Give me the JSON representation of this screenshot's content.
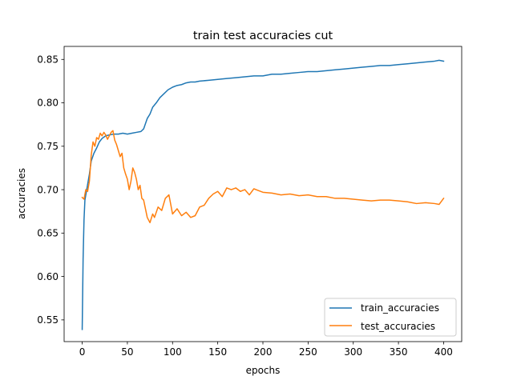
{
  "chart_data": {
    "type": "line",
    "title": "train test accuracies cut",
    "xlabel": "epochs",
    "ylabel": "accuracies",
    "xlim": [
      -20,
      420
    ],
    "ylim": [
      0.525,
      0.865
    ],
    "xticks": [
      0,
      50,
      100,
      150,
      200,
      250,
      300,
      350,
      400
    ],
    "yticks": [
      0.55,
      0.6,
      0.65,
      0.7,
      0.75,
      0.8,
      0.85
    ],
    "ytick_labels": [
      "0.55",
      "0.60",
      "0.65",
      "0.70",
      "0.75",
      "0.80",
      "0.85"
    ],
    "grid": false,
    "legend_position": "lower right",
    "series": [
      {
        "name": "train_accuracies",
        "color": "#1f77b4",
        "points": [
          [
            0,
            0.539
          ],
          [
            1,
            0.62
          ],
          [
            2,
            0.665
          ],
          [
            3,
            0.688
          ],
          [
            5,
            0.7
          ],
          [
            8,
            0.718
          ],
          [
            10,
            0.733
          ],
          [
            13,
            0.742
          ],
          [
            16,
            0.748
          ],
          [
            19,
            0.755
          ],
          [
            22,
            0.759
          ],
          [
            26,
            0.762
          ],
          [
            30,
            0.763
          ],
          [
            35,
            0.764
          ],
          [
            40,
            0.764
          ],
          [
            45,
            0.765
          ],
          [
            50,
            0.764
          ],
          [
            55,
            0.765
          ],
          [
            60,
            0.766
          ],
          [
            65,
            0.767
          ],
          [
            68,
            0.77
          ],
          [
            70,
            0.776
          ],
          [
            72,
            0.782
          ],
          [
            75,
            0.787
          ],
          [
            78,
            0.795
          ],
          [
            82,
            0.8
          ],
          [
            86,
            0.806
          ],
          [
            90,
            0.81
          ],
          [
            95,
            0.815
          ],
          [
            100,
            0.818
          ],
          [
            105,
            0.82
          ],
          [
            110,
            0.821
          ],
          [
            115,
            0.823
          ],
          [
            120,
            0.824
          ],
          [
            125,
            0.824
          ],
          [
            130,
            0.825
          ],
          [
            140,
            0.826
          ],
          [
            150,
            0.827
          ],
          [
            160,
            0.828
          ],
          [
            170,
            0.829
          ],
          [
            180,
            0.83
          ],
          [
            190,
            0.831
          ],
          [
            200,
            0.831
          ],
          [
            210,
            0.833
          ],
          [
            220,
            0.833
          ],
          [
            230,
            0.834
          ],
          [
            240,
            0.835
          ],
          [
            250,
            0.836
          ],
          [
            260,
            0.836
          ],
          [
            270,
            0.837
          ],
          [
            280,
            0.838
          ],
          [
            290,
            0.839
          ],
          [
            300,
            0.84
          ],
          [
            310,
            0.841
          ],
          [
            320,
            0.842
          ],
          [
            330,
            0.843
          ],
          [
            340,
            0.843
          ],
          [
            350,
            0.844
          ],
          [
            360,
            0.845
          ],
          [
            370,
            0.846
          ],
          [
            380,
            0.847
          ],
          [
            390,
            0.848
          ],
          [
            395,
            0.849
          ],
          [
            400,
            0.848
          ]
        ]
      },
      {
        "name": "test_accuracies",
        "color": "#ff7f0e",
        "points": [
          [
            0,
            0.691
          ],
          [
            2,
            0.689
          ],
          [
            4,
            0.7
          ],
          [
            6,
            0.698
          ],
          [
            8,
            0.71
          ],
          [
            10,
            0.74
          ],
          [
            12,
            0.755
          ],
          [
            14,
            0.75
          ],
          [
            16,
            0.76
          ],
          [
            18,
            0.758
          ],
          [
            20,
            0.765
          ],
          [
            22,
            0.762
          ],
          [
            24,
            0.766
          ],
          [
            26,
            0.763
          ],
          [
            28,
            0.758
          ],
          [
            30,
            0.762
          ],
          [
            32,
            0.766
          ],
          [
            34,
            0.768
          ],
          [
            36,
            0.757
          ],
          [
            38,
            0.752
          ],
          [
            40,
            0.745
          ],
          [
            42,
            0.738
          ],
          [
            44,
            0.742
          ],
          [
            46,
            0.725
          ],
          [
            48,
            0.718
          ],
          [
            50,
            0.712
          ],
          [
            52,
            0.7
          ],
          [
            54,
            0.71
          ],
          [
            56,
            0.725
          ],
          [
            58,
            0.72
          ],
          [
            60,
            0.712
          ],
          [
            62,
            0.7
          ],
          [
            64,
            0.705
          ],
          [
            66,
            0.69
          ],
          [
            68,
            0.688
          ],
          [
            70,
            0.678
          ],
          [
            72,
            0.668
          ],
          [
            75,
            0.662
          ],
          [
            78,
            0.672
          ],
          [
            80,
            0.668
          ],
          [
            84,
            0.68
          ],
          [
            88,
            0.676
          ],
          [
            92,
            0.69
          ],
          [
            96,
            0.694
          ],
          [
            100,
            0.672
          ],
          [
            105,
            0.678
          ],
          [
            110,
            0.67
          ],
          [
            115,
            0.674
          ],
          [
            120,
            0.668
          ],
          [
            125,
            0.67
          ],
          [
            130,
            0.68
          ],
          [
            135,
            0.682
          ],
          [
            140,
            0.69
          ],
          [
            145,
            0.695
          ],
          [
            150,
            0.698
          ],
          [
            155,
            0.692
          ],
          [
            160,
            0.702
          ],
          [
            165,
            0.7
          ],
          [
            170,
            0.702
          ],
          [
            175,
            0.698
          ],
          [
            180,
            0.7
          ],
          [
            185,
            0.694
          ],
          [
            190,
            0.701
          ],
          [
            195,
            0.699
          ],
          [
            200,
            0.697
          ],
          [
            210,
            0.696
          ],
          [
            220,
            0.694
          ],
          [
            230,
            0.695
          ],
          [
            240,
            0.693
          ],
          [
            250,
            0.694
          ],
          [
            260,
            0.692
          ],
          [
            270,
            0.692
          ],
          [
            280,
            0.69
          ],
          [
            290,
            0.69
          ],
          [
            300,
            0.689
          ],
          [
            310,
            0.688
          ],
          [
            320,
            0.687
          ],
          [
            330,
            0.688
          ],
          [
            340,
            0.688
          ],
          [
            350,
            0.687
          ],
          [
            360,
            0.686
          ],
          [
            370,
            0.684
          ],
          [
            380,
            0.685
          ],
          [
            390,
            0.684
          ],
          [
            395,
            0.683
          ],
          [
            400,
            0.69
          ]
        ]
      }
    ]
  }
}
